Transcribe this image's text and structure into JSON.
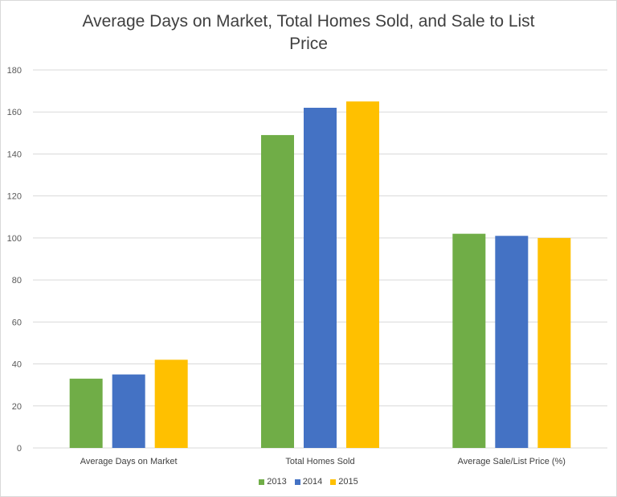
{
  "chart_data": {
    "type": "bar",
    "title_lines": [
      "Average Days on Market, Total Homes Sold, and Sale to List",
      "Price"
    ],
    "xlabel": "",
    "ylabel": "",
    "categories": [
      "Average Days on Market",
      "Total Homes Sold",
      "Average Sale/List Price (%)"
    ],
    "series": [
      {
        "name": "2013",
        "color": "#70ad47",
        "values": [
          33,
          149,
          102
        ]
      },
      {
        "name": "2014",
        "color": "#4472c4",
        "values": [
          35,
          162,
          101
        ]
      },
      {
        "name": "2015",
        "color": "#ffc000",
        "values": [
          42,
          165,
          100
        ]
      }
    ],
    "ylim": [
      0,
      180
    ],
    "yticks": [
      0,
      20,
      40,
      60,
      80,
      100,
      120,
      140,
      160,
      180
    ],
    "grid": true,
    "legend_position": "bottom"
  }
}
